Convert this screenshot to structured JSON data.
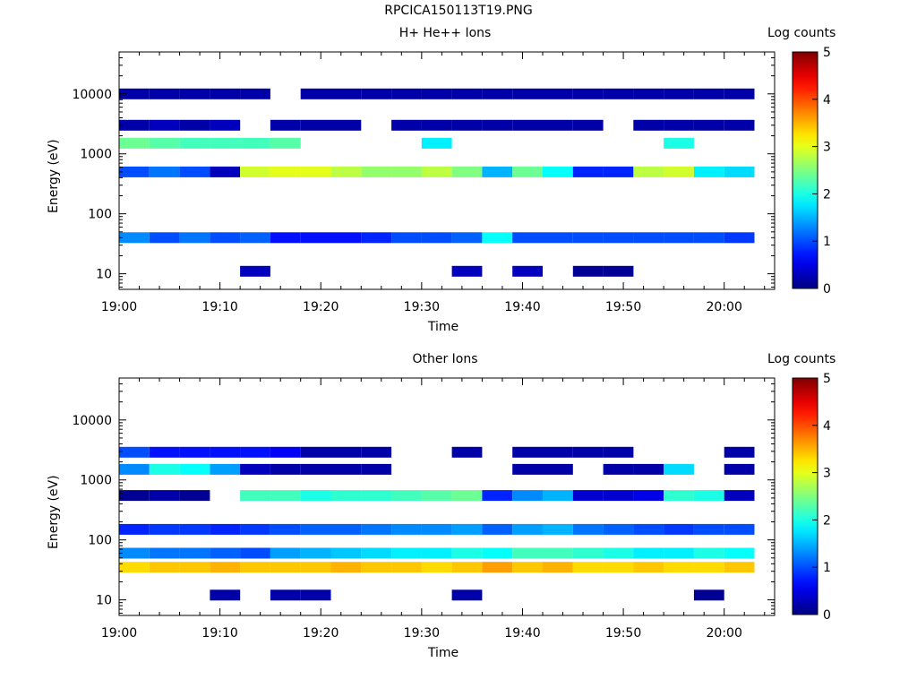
{
  "page_title": "RPCICA150113T19.PNG",
  "colorbar_label": "Log counts",
  "colorbar_ticks": [
    "0",
    "1",
    "2",
    "3",
    "4",
    "5"
  ],
  "x_tick_labels": [
    "19:00",
    "19:10",
    "19:20",
    "19:30",
    "19:40",
    "19:50",
    "20:00"
  ],
  "chart_data": [
    {
      "type": "heatmap",
      "title": "H+ He++ Ions",
      "xlabel": "Time",
      "ylabel": "Energy (eV)",
      "y_scale": "log",
      "y_tick_labels": [
        "10",
        "100",
        "1000",
        "10000"
      ],
      "colorbar": {
        "label": "Log counts",
        "range": [
          0,
          5
        ],
        "ticks": [
          0,
          1,
          2,
          3,
          4,
          5
        ]
      },
      "time_bins": [
        "19:00",
        "19:03",
        "19:06",
        "19:09",
        "19:12",
        "19:15",
        "19:18",
        "19:21",
        "19:24",
        "19:27",
        "19:30",
        "19:33",
        "19:36",
        "19:39",
        "19:42",
        "19:45",
        "19:48",
        "19:51",
        "19:54",
        "19:57",
        "20:00"
      ],
      "energy_bands": [
        {
          "energy_eV": 11,
          "values": [
            null,
            null,
            null,
            null,
            0.3,
            null,
            null,
            null,
            null,
            null,
            null,
            0.3,
            null,
            0.3,
            null,
            0.1,
            0.1,
            null,
            null,
            null,
            null
          ]
        },
        {
          "energy_eV": 40,
          "values": [
            1.3,
            1.0,
            1.2,
            1.0,
            1.1,
            0.7,
            0.7,
            0.7,
            0.8,
            1.0,
            1.0,
            1.1,
            1.9,
            1.0,
            1.0,
            1.0,
            1.0,
            1.0,
            1.0,
            1.0,
            0.9
          ]
        },
        {
          "energy_eV": 500,
          "values": [
            1.0,
            1.2,
            1.0,
            0.3,
            2.9,
            3.0,
            3.0,
            2.8,
            2.6,
            2.6,
            2.8,
            2.5,
            1.5,
            2.4,
            1.9,
            0.8,
            0.8,
            2.8,
            2.9,
            1.8,
            1.7
          ]
        },
        {
          "energy_eV": 1500,
          "values": [
            2.4,
            2.3,
            2.2,
            2.2,
            2.2,
            2.3,
            null,
            null,
            null,
            null,
            1.8,
            null,
            null,
            null,
            null,
            null,
            null,
            null,
            2.0,
            null,
            null
          ]
        },
        {
          "energy_eV": 3000,
          "values": [
            0.2,
            0.3,
            0.2,
            0.3,
            null,
            0.2,
            0.2,
            0.2,
            null,
            0.2,
            0.2,
            0.2,
            0.2,
            0.2,
            0.2,
            0.2,
            null,
            0.2,
            0.2,
            0.2,
            0.2
          ]
        },
        {
          "energy_eV": 10000,
          "values": [
            0.2,
            0.2,
            0.2,
            0.2,
            0.2,
            null,
            0.2,
            0.2,
            0.2,
            0.2,
            0.2,
            0.2,
            0.2,
            0.2,
            0.2,
            0.2,
            0.2,
            0.2,
            0.2,
            0.2,
            0.2
          ]
        }
      ]
    },
    {
      "type": "heatmap",
      "title": "Other Ions",
      "xlabel": "Time",
      "ylabel": "Energy (eV)",
      "y_scale": "log",
      "y_tick_labels": [
        "10",
        "100",
        "1000",
        "10000"
      ],
      "colorbar": {
        "label": "Log counts",
        "range": [
          0,
          5
        ],
        "ticks": [
          0,
          1,
          2,
          3,
          4,
          5
        ]
      },
      "time_bins": [
        "19:00",
        "19:03",
        "19:06",
        "19:09",
        "19:12",
        "19:15",
        "19:18",
        "19:21",
        "19:24",
        "19:27",
        "19:30",
        "19:33",
        "19:36",
        "19:39",
        "19:42",
        "19:45",
        "19:48",
        "19:51",
        "19:54",
        "19:57",
        "20:00"
      ],
      "energy_bands": [
        {
          "energy_eV": 12,
          "values": [
            null,
            null,
            null,
            0.2,
            null,
            0.2,
            0.2,
            null,
            null,
            null,
            null,
            0.2,
            null,
            null,
            null,
            null,
            null,
            null,
            null,
            0.1,
            null
          ]
        },
        {
          "energy_eV": 35,
          "values": [
            3.3,
            3.4,
            3.4,
            3.5,
            3.4,
            3.4,
            3.4,
            3.5,
            3.4,
            3.4,
            3.3,
            3.4,
            3.6,
            3.4,
            3.5,
            3.3,
            3.3,
            3.4,
            3.3,
            3.3,
            3.4
          ]
        },
        {
          "energy_eV": 60,
          "values": [
            1.3,
            1.2,
            1.2,
            1.1,
            1.0,
            1.4,
            1.5,
            1.6,
            1.7,
            1.8,
            1.8,
            2.0,
            1.9,
            2.2,
            2.2,
            2.1,
            2.0,
            1.8,
            1.8,
            2.0,
            1.9
          ]
        },
        {
          "energy_eV": 150,
          "values": [
            0.8,
            0.9,
            0.9,
            0.8,
            0.9,
            1.0,
            1.1,
            1.1,
            1.2,
            1.3,
            1.3,
            1.4,
            1.1,
            1.4,
            1.5,
            1.2,
            1.1,
            1.0,
            0.9,
            1.0,
            1.0
          ]
        },
        {
          "energy_eV": 550,
          "values": [
            0.1,
            0.2,
            0.1,
            null,
            2.2,
            2.2,
            2.0,
            2.1,
            2.1,
            2.2,
            2.3,
            2.4,
            0.8,
            1.3,
            1.5,
            0.4,
            0.4,
            0.5,
            2.1,
            2.0,
            0.3
          ]
        },
        {
          "energy_eV": 1500,
          "values": [
            1.3,
            2.0,
            1.9,
            1.4,
            0.3,
            0.2,
            0.2,
            0.2,
            0.2,
            null,
            null,
            null,
            null,
            0.2,
            0.2,
            null,
            0.2,
            0.2,
            1.7,
            null,
            0.2
          ]
        },
        {
          "energy_eV": 2900,
          "values": [
            1.0,
            0.7,
            0.7,
            0.7,
            0.7,
            0.6,
            0.2,
            0.2,
            0.2,
            null,
            null,
            0.2,
            null,
            0.2,
            0.2,
            0.2,
            0.2,
            null,
            null,
            null,
            0.2
          ]
        }
      ]
    }
  ]
}
